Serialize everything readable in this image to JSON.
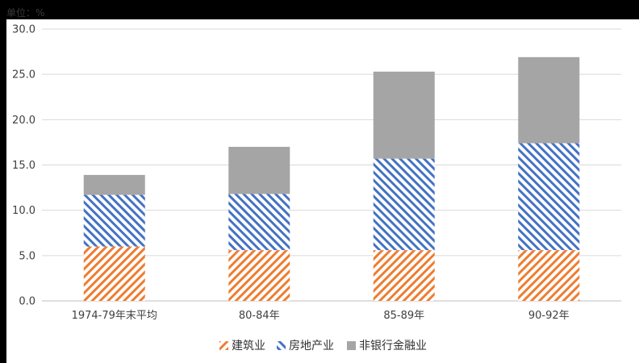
{
  "chart_data": {
    "type": "bar",
    "stacked": true,
    "unit_label": "单位：%",
    "categories": [
      "1974-79年末平均",
      "80-84年",
      "85-89年",
      "90-92年"
    ],
    "series": [
      {
        "name": "建筑业",
        "values": [
          6.0,
          5.6,
          5.6,
          5.6
        ],
        "color": "#ED7D31",
        "pattern": "diagonal-up-hatch"
      },
      {
        "name": "房地产业",
        "values": [
          5.7,
          6.2,
          10.1,
          11.8
        ],
        "color": "#4472C4",
        "pattern": "diagonal-down-hatch"
      },
      {
        "name": "非银行金融业",
        "values": [
          2.2,
          5.2,
          9.6,
          9.5
        ],
        "color": "#A5A5A5",
        "pattern": "solid"
      }
    ],
    "ylim": [
      0,
      30
    ],
    "yticks": [
      "0.0",
      "5.0",
      "10.0",
      "15.0",
      "20.0",
      "25.0",
      "30.0"
    ],
    "grid": true,
    "legend_position": "bottom"
  }
}
